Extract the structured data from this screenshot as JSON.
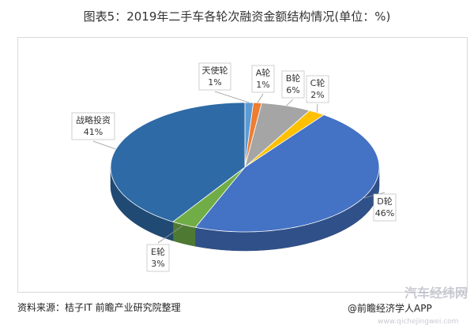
{
  "chart_data": {
    "type": "pie",
    "title": "图表5：2019年二手车各轮次融资金额结构情况(单位：%)",
    "categories": [
      "天使轮",
      "A轮",
      "B轮",
      "C轮",
      "D轮",
      "E轮",
      "战略投资"
    ],
    "values": [
      1,
      1,
      6,
      2,
      46,
      3,
      41
    ],
    "value_labels": [
      "1%",
      "1%",
      "6%",
      "2%",
      "46%",
      "3%",
      "41%"
    ],
    "colors": [
      "#5b9bd5",
      "#ed7d31",
      "#a5a5a5",
      "#ffc000",
      "#4472c4",
      "#70ad47",
      "#2e6aa6"
    ],
    "style": "3d"
  },
  "footer": {
    "source": "资料来源：桔子IT 前瞻产业研究院整理",
    "credit": "@前瞻经济学人APP",
    "watermark": "汽车经纬网",
    "watermark_url": "www.qichejingwei.com"
  }
}
